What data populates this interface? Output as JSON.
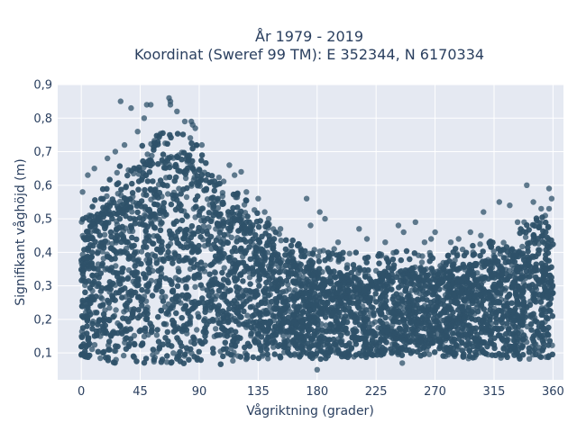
{
  "chart_data": {
    "type": "scatter",
    "title_line1": "År 1979 - 2019",
    "title_line2": "Koordinat (Sweref 99 TM): E 352344, N 6170334",
    "xlabel": "Vågriktning (grader)",
    "ylabel": "Signifikant våghöjd (m)",
    "xlim": [
      -18,
      368
    ],
    "ylim": [
      0.02,
      0.9
    ],
    "x_ticks": [
      0,
      45,
      90,
      135,
      180,
      225,
      270,
      315,
      360
    ],
    "y_ticks": [
      0.1,
      0.2,
      0.3,
      0.4,
      0.5,
      0.6,
      0.7,
      0.8,
      0.9
    ],
    "y_tick_labels": [
      "0,1",
      "0,2",
      "0,3",
      "0,4",
      "0,5",
      "0,6",
      "0,7",
      "0,8",
      "0,9"
    ],
    "grid": true,
    "marker_color": "#2f5269",
    "background_color": "#e5e9f2",
    "envelope": {
      "direction_deg": [
        0,
        10,
        20,
        30,
        45,
        60,
        70,
        80,
        90,
        100,
        110,
        120,
        135,
        150,
        165,
        180,
        200,
        225,
        250,
        270,
        290,
        315,
        330,
        345,
        360
      ],
      "dense_top_m": [
        0.44,
        0.5,
        0.55,
        0.6,
        0.66,
        0.7,
        0.71,
        0.7,
        0.65,
        0.58,
        0.55,
        0.52,
        0.46,
        0.4,
        0.37,
        0.35,
        0.34,
        0.34,
        0.35,
        0.35,
        0.36,
        0.38,
        0.4,
        0.44,
        0.46
      ],
      "bottom_m": [
        0.08,
        0.08,
        0.07,
        0.07,
        0.06,
        0.06,
        0.06,
        0.06,
        0.06,
        0.06,
        0.07,
        0.08,
        0.08,
        0.08,
        0.08,
        0.08,
        0.08,
        0.09,
        0.09,
        0.09,
        0.08,
        0.08,
        0.08,
        0.08,
        0.08
      ]
    },
    "outliers": [
      {
        "x": 30,
        "y": 0.85
      },
      {
        "x": 38,
        "y": 0.83
      },
      {
        "x": 50,
        "y": 0.84
      },
      {
        "x": 53,
        "y": 0.84
      },
      {
        "x": 48,
        "y": 0.8
      },
      {
        "x": 43,
        "y": 0.76
      },
      {
        "x": 67,
        "y": 0.86
      },
      {
        "x": 68,
        "y": 0.85
      },
      {
        "x": 68,
        "y": 0.84
      },
      {
        "x": 73,
        "y": 0.82
      },
      {
        "x": 79,
        "y": 0.79
      },
      {
        "x": 84,
        "y": 0.79
      },
      {
        "x": 85,
        "y": 0.78
      },
      {
        "x": 87,
        "y": 0.77
      },
      {
        "x": 60,
        "y": 0.75
      },
      {
        "x": 92,
        "y": 0.72
      },
      {
        "x": 26,
        "y": 0.7
      },
      {
        "x": 20,
        "y": 0.68
      },
      {
        "x": 33,
        "y": 0.72
      },
      {
        "x": 10,
        "y": 0.65
      },
      {
        "x": 5,
        "y": 0.63
      },
      {
        "x": 1,
        "y": 0.58
      },
      {
        "x": 113,
        "y": 0.66
      },
      {
        "x": 117,
        "y": 0.63
      },
      {
        "x": 122,
        "y": 0.64
      },
      {
        "x": 126,
        "y": 0.58
      },
      {
        "x": 135,
        "y": 0.56
      },
      {
        "x": 140,
        "y": 0.52
      },
      {
        "x": 143,
        "y": 0.5
      },
      {
        "x": 152,
        "y": 0.47
      },
      {
        "x": 172,
        "y": 0.56
      },
      {
        "x": 175,
        "y": 0.48
      },
      {
        "x": 182,
        "y": 0.52
      },
      {
        "x": 186,
        "y": 0.5
      },
      {
        "x": 196,
        "y": 0.43
      },
      {
        "x": 193,
        "y": 0.41
      },
      {
        "x": 212,
        "y": 0.47
      },
      {
        "x": 218,
        "y": 0.44
      },
      {
        "x": 232,
        "y": 0.43
      },
      {
        "x": 242,
        "y": 0.48
      },
      {
        "x": 246,
        "y": 0.46
      },
      {
        "x": 255,
        "y": 0.49
      },
      {
        "x": 262,
        "y": 0.43
      },
      {
        "x": 267,
        "y": 0.44
      },
      {
        "x": 270,
        "y": 0.46
      },
      {
        "x": 282,
        "y": 0.43
      },
      {
        "x": 288,
        "y": 0.44
      },
      {
        "x": 297,
        "y": 0.46
      },
      {
        "x": 305,
        "y": 0.45
      },
      {
        "x": 307,
        "y": 0.52
      },
      {
        "x": 319,
        "y": 0.55
      },
      {
        "x": 327,
        "y": 0.54
      },
      {
        "x": 340,
        "y": 0.6
      },
      {
        "x": 345,
        "y": 0.55
      },
      {
        "x": 351,
        "y": 0.53
      },
      {
        "x": 357,
        "y": 0.59
      },
      {
        "x": 359,
        "y": 0.56
      },
      {
        "x": 357,
        "y": 0.53
      },
      {
        "x": 333,
        "y": 0.49
      },
      {
        "x": 338,
        "y": 0.49
      },
      {
        "x": 260,
        "y": 0.37
      },
      {
        "x": 274,
        "y": 0.36
      },
      {
        "x": 180,
        "y": 0.05
      },
      {
        "x": 245,
        "y": 0.07
      }
    ]
  }
}
